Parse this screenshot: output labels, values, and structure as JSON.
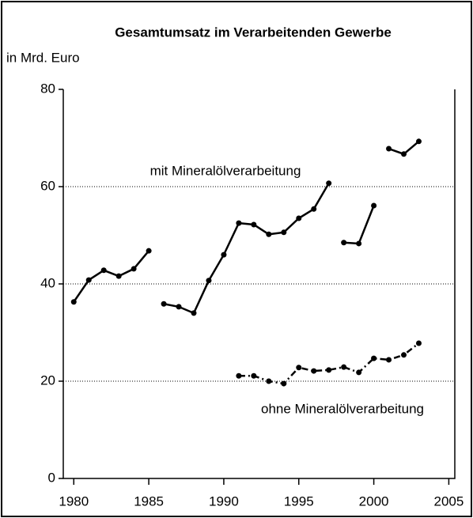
{
  "chart_data": {
    "type": "line",
    "title": "Gesamtumsatz im Verarbeitenden Gewerbe",
    "ylabel": "in Mrd. Euro",
    "xlim": [
      1979.3,
      2005.4
    ],
    "xticks": [
      1980,
      1985,
      1990,
      1995,
      2000,
      2005
    ],
    "ylim": [
      0,
      80
    ],
    "yticks": [
      0,
      20,
      40,
      60,
      80
    ],
    "grid": true,
    "series": [
      {
        "name": "mit Mineralölverarbeitung",
        "color": "#000000",
        "dash": "solid",
        "pieces": [
          {
            "x": [
              1980,
              1981,
              1982,
              1983,
              1984,
              1985
            ],
            "values": [
              36.3,
              40.8,
              42.8,
              41.6,
              43.1,
              46.8
            ]
          },
          {
            "x": [
              1986,
              1987,
              1988,
              1989,
              1990,
              1991,
              1992,
              1993,
              1994,
              1995,
              1996,
              1997
            ],
            "values": [
              35.9,
              35.3,
              34.0,
              40.7,
              46.0,
              52.5,
              52.2,
              50.2,
              50.6,
              53.5,
              55.4,
              60.7
            ]
          },
          {
            "x": [
              1998,
              1999,
              2000
            ],
            "values": [
              48.5,
              48.3,
              56.1
            ]
          },
          {
            "x": [
              2001,
              2002,
              2003
            ],
            "values": [
              67.8,
              66.7,
              69.3
            ]
          }
        ]
      },
      {
        "name": "ohne Mineralölverarbeitung",
        "color": "#000000",
        "dash": "dashdot",
        "pieces": [
          {
            "x": [
              1991,
              1992,
              1993,
              1994,
              1995,
              1996,
              1997,
              1998,
              1999,
              2000,
              2001,
              2002,
              2003
            ],
            "values": [
              21.1,
              21.1,
              20.0,
              19.5,
              22.8,
              22.1,
              22.3,
              22.9,
              21.8,
              24.7,
              24.4,
              25.4,
              27.8
            ]
          }
        ]
      }
    ]
  }
}
